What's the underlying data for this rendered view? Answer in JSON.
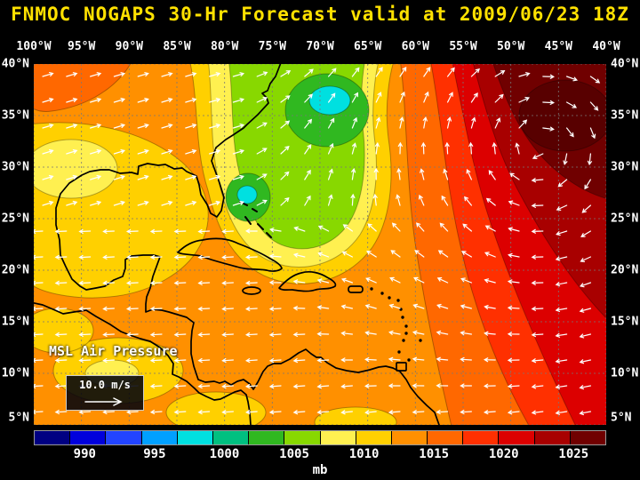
{
  "header": {
    "title": "FNMOC NOGAPS 30-Hr Forecast valid at 2009/06/23 18Z"
  },
  "map_overlay": {
    "field_label": "MSL Air Pressure",
    "wind_scale_label": "10.0 m/s"
  },
  "axes": {
    "lon_ticks": [
      "100°W",
      "95°W",
      "90°W",
      "85°W",
      "80°W",
      "75°W",
      "70°W",
      "65°W",
      "60°W",
      "55°W",
      "50°W",
      "45°W",
      "40°W"
    ],
    "lat_ticks": [
      "40°N",
      "35°N",
      "30°N",
      "25°N",
      "20°N",
      "15°N",
      "10°N",
      "5°N"
    ]
  },
  "colorbar": {
    "labels": [
      "990",
      "995",
      "1000",
      "1005",
      "1010",
      "1015",
      "1020",
      "1025"
    ],
    "unit": "mb",
    "colors": [
      "#000082",
      "#0000DC",
      "#2244FF",
      "#00A0FF",
      "#00E0E0",
      "#00C080",
      "#30B820",
      "#88D800",
      "#FFF050",
      "#FFD000",
      "#FF9000",
      "#FF6800",
      "#FF3000",
      "#DC0000",
      "#A80000",
      "#700000"
    ]
  },
  "chart_data": {
    "type": "heatmap",
    "subtype": "filled-contour weather map with wind vectors",
    "title": "FNMOC NOGAPS 30-Hr Forecast valid at 2009/06/23 18Z",
    "model": "FNMOC NOGAPS",
    "forecast_hour": 30,
    "valid_time": "2009/06/23 18Z",
    "field": "MSL Air Pressure",
    "units": "mb",
    "x_axis": {
      "ticks": [
        "100°W",
        "95°W",
        "90°W",
        "85°W",
        "80°W",
        "75°W",
        "70°W",
        "65°W",
        "60°W",
        "55°W",
        "50°W",
        "45°W",
        "40°W"
      ],
      "range": [
        "100°W",
        "40°W"
      ]
    },
    "y_axis": {
      "ticks": [
        "40°N",
        "35°N",
        "30°N",
        "25°N",
        "20°N",
        "15°N",
        "10°N",
        "5°N"
      ],
      "range": [
        "5°N",
        "40°N"
      ]
    },
    "colorbar": {
      "tick_labels_mb": [
        990,
        995,
        1000,
        1005,
        1010,
        1015,
        1020,
        1025
      ],
      "approx_range_mb": [
        987.5,
        1027.5
      ],
      "segment_step_mb": 2.5,
      "unit": "mb",
      "segment_colors": [
        "#000082",
        "#0000DC",
        "#2244FF",
        "#00A0FF",
        "#00E0E0",
        "#00C080",
        "#30B820",
        "#88D800",
        "#FFF050",
        "#FFD000",
        "#FF9000",
        "#FF6800",
        "#FF3000",
        "#DC0000",
        "#A80000",
        "#700000"
      ]
    },
    "features": {
      "high": "Strong subtropical high (>1025 mb, dark maroon) centered near 32°N 47°W with clockwise wind circulation",
      "low": "Relative low (~1000-1005 mb, green/cyan) off the US southeast coast near 30°N 72°W with a small minimum near 27°N 80°W",
      "trades": "Easterly trade-wind flow across the Caribbean and tropical Atlantic",
      "background": "1010-1015 mb (yellow/orange) over the Gulf of Mexico, Mexico and Caribbean"
    },
    "wind_reference": {
      "label": "10.0 m/s",
      "vector_color": "#FFFFFF"
    },
    "grid": true,
    "legend_position": "bottom colorbar"
  }
}
